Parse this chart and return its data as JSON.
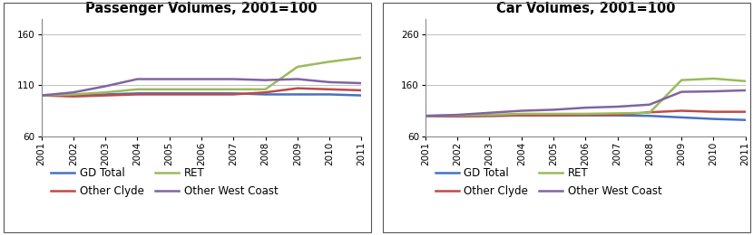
{
  "years": [
    2001,
    2002,
    2003,
    2004,
    2005,
    2006,
    2007,
    2008,
    2009,
    2010,
    2011
  ],
  "passenger": {
    "title": "Passenger Volumes, 2001=100",
    "ylim": [
      60,
      175
    ],
    "yticks": [
      60,
      110,
      160
    ],
    "GD_Total": [
      100,
      100,
      101,
      102,
      102,
      102,
      102,
      101,
      101,
      101,
      100
    ],
    "Other_Clyde": [
      100,
      99,
      100,
      101,
      101,
      101,
      101,
      103,
      107,
      106,
      105
    ],
    "RET": [
      100,
      101,
      103,
      106,
      106,
      106,
      106,
      106,
      128,
      133,
      137
    ],
    "Other_West_Coast": [
      100,
      103,
      109,
      116,
      116,
      116,
      116,
      115,
      116,
      113,
      112
    ]
  },
  "car": {
    "title": "Car Volumes, 2001=100",
    "ylim": [
      60,
      290
    ],
    "yticks": [
      60,
      160,
      260
    ],
    "GD_Total": [
      100,
      99,
      100,
      101,
      101,
      101,
      101,
      100,
      97,
      94,
      92
    ],
    "Other_Clyde": [
      100,
      99,
      100,
      101,
      101,
      102,
      102,
      107,
      110,
      108,
      108
    ],
    "RET": [
      100,
      101,
      102,
      104,
      104,
      104,
      105,
      106,
      170,
      173,
      168
    ],
    "Other_West_Coast": [
      100,
      102,
      106,
      110,
      112,
      116,
      118,
      122,
      147,
      148,
      150
    ]
  },
  "colors": {
    "GD_Total": "#4472C4",
    "Other_Clyde": "#BE4B48",
    "RET": "#9BBB59",
    "Other_West_Coast": "#8064A2"
  },
  "legend": {
    "GD_Total": "GD Total",
    "Other_Clyde": "Other Clyde",
    "RET": "RET",
    "Other_West_Coast": "Other West Coast"
  },
  "series_keys": [
    "GD_Total",
    "Other_Clyde",
    "RET",
    "Other_West_Coast"
  ],
  "line_width": 1.8,
  "title_fontsize": 10.5,
  "tick_fontsize": 7.5,
  "legend_fontsize": 8.5,
  "background_color": "#ffffff",
  "border_color": "#000000",
  "grid_color": "#C0C0C0"
}
